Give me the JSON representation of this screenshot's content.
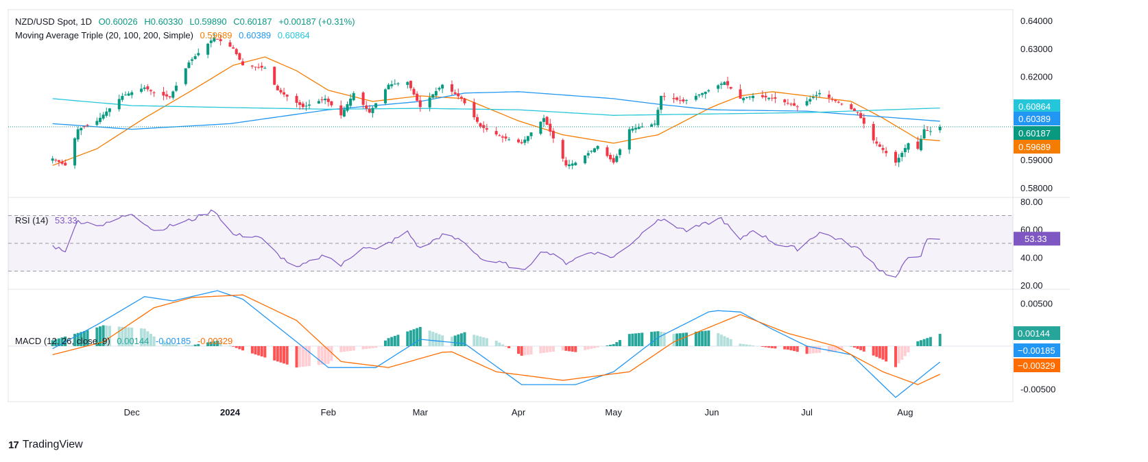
{
  "header": {
    "symbol": "NZD/USD Spot, 1D",
    "ohlc": {
      "o": "O0.60026",
      "h": "H0.60330",
      "l": "L0.59890",
      "c": "C0.60187",
      "chg": "+0.00187 (+0.31%)"
    },
    "ma_label": "Moving Average Triple (20, 100, 200, Simple)",
    "ma_values": [
      "0.59689",
      "0.60389",
      "0.60864"
    ]
  },
  "rsi_legend": {
    "label": "RSI (14)",
    "value": "53.33"
  },
  "macd_legend": {
    "label": "MACD (12, 26, close, 9)",
    "values": [
      "0.00144",
      "-0.00185",
      "-0.00329"
    ]
  },
  "watermark": "TradingView",
  "colors": {
    "up": "#089981",
    "down": "#f23645",
    "ma20": "#f57c00",
    "ma100": "#2196f3",
    "ma200": "#26c6da",
    "rsi": "#7e57c2",
    "macd": "#2196f3",
    "signal": "#ff6d00",
    "hist_up_strong": "#26a69a",
    "hist_up_weak": "#b2dfdb",
    "hist_down_strong": "#ff5252",
    "hist_down_weak": "#ffcdd2"
  },
  "chart_data": [
    {
      "type": "candlestick",
      "title": "NZD/USD Spot, 1D",
      "ylim": [
        0.577,
        0.644
      ],
      "y_ticks": [
        "0.64000",
        "0.63000",
        "0.62000",
        "0.59000",
        "0.58000"
      ],
      "x_labels": [
        "Dec",
        "2024",
        "Feb",
        "Mar",
        "Apr",
        "May",
        "Jun",
        "Jul",
        "Aug"
      ],
      "x_label_dates": [
        "2023-12-01",
        "2024-01-01",
        "2024-02-01",
        "2024-03-01",
        "2024-04-01",
        "2024-05-01",
        "2024-06-01",
        "2024-07-01",
        "2024-08-01"
      ],
      "date_range": [
        "2023-11-06",
        "2024-08-12"
      ],
      "close_anchors": [
        {
          "date": "2023-11-06",
          "close": 0.5905
        },
        {
          "date": "2023-11-10",
          "close": 0.588
        },
        {
          "date": "2023-11-14",
          "close": 0.601
        },
        {
          "date": "2023-11-20",
          "close": 0.604
        },
        {
          "date": "2023-11-28",
          "close": 0.613
        },
        {
          "date": "2023-12-05",
          "close": 0.616
        },
        {
          "date": "2023-12-08",
          "close": 0.614
        },
        {
          "date": "2023-12-13",
          "close": 0.6125
        },
        {
          "date": "2023-12-19",
          "close": 0.625
        },
        {
          "date": "2023-12-27",
          "close": 0.634
        },
        {
          "date": "2024-01-02",
          "close": 0.63
        },
        {
          "date": "2024-01-05",
          "close": 0.624
        },
        {
          "date": "2024-01-12",
          "close": 0.623
        },
        {
          "date": "2024-01-16",
          "close": 0.615
        },
        {
          "date": "2024-01-24",
          "close": 0.609
        },
        {
          "date": "2024-01-31",
          "close": 0.612
        },
        {
          "date": "2024-02-05",
          "close": 0.606
        },
        {
          "date": "2024-02-09",
          "close": 0.614
        },
        {
          "date": "2024-02-14",
          "close": 0.607
        },
        {
          "date": "2024-02-20",
          "close": 0.617
        },
        {
          "date": "2024-02-26",
          "close": 0.618
        },
        {
          "date": "2024-03-01",
          "close": 0.609
        },
        {
          "date": "2024-03-08",
          "close": 0.617
        },
        {
          "date": "2024-03-14",
          "close": 0.612
        },
        {
          "date": "2024-03-20",
          "close": 0.602
        },
        {
          "date": "2024-03-27",
          "close": 0.598
        },
        {
          "date": "2024-04-02",
          "close": 0.596
        },
        {
          "date": "2024-04-09",
          "close": 0.605
        },
        {
          "date": "2024-04-16",
          "close": 0.588
        },
        {
          "date": "2024-04-19",
          "close": 0.589
        },
        {
          "date": "2024-04-26",
          "close": 0.595
        },
        {
          "date": "2024-05-01",
          "close": 0.589
        },
        {
          "date": "2024-05-06",
          "close": 0.601
        },
        {
          "date": "2024-05-14",
          "close": 0.603
        },
        {
          "date": "2024-05-16",
          "close": 0.613
        },
        {
          "date": "2024-05-23",
          "close": 0.611
        },
        {
          "date": "2024-05-31",
          "close": 0.615
        },
        {
          "date": "2024-06-05",
          "close": 0.618
        },
        {
          "date": "2024-06-10",
          "close": 0.612
        },
        {
          "date": "2024-06-14",
          "close": 0.613
        },
        {
          "date": "2024-06-21",
          "close": 0.612
        },
        {
          "date": "2024-06-28",
          "close": 0.609
        },
        {
          "date": "2024-07-05",
          "close": 0.614
        },
        {
          "date": "2024-07-12",
          "close": 0.61
        },
        {
          "date": "2024-07-17",
          "close": 0.607
        },
        {
          "date": "2024-07-22",
          "close": 0.597
        },
        {
          "date": "2024-07-29",
          "close": 0.589
        },
        {
          "date": "2024-08-02",
          "close": 0.596
        },
        {
          "date": "2024-08-05",
          "close": 0.594
        },
        {
          "date": "2024-08-07",
          "close": 0.601
        },
        {
          "date": "2024-08-09",
          "close": 0.6003
        },
        {
          "date": "2024-08-12",
          "close": 0.60187
        }
      ],
      "ma_lines": [
        {
          "name": "MA 20",
          "color": "#f57c00",
          "points": [
            [
              "2023-11-06",
              0.588
            ],
            [
              "2023-11-20",
              0.594
            ],
            [
              "2023-12-05",
              0.605
            ],
            [
              "2023-12-20",
              0.615
            ],
            [
              "2024-01-02",
              0.624
            ],
            [
              "2024-01-12",
              0.627
            ],
            [
              "2024-01-22",
              0.622
            ],
            [
              "2024-02-01",
              0.615
            ],
            [
              "2024-02-15",
              0.611
            ],
            [
              "2024-03-01",
              0.613
            ],
            [
              "2024-03-15",
              0.612
            ],
            [
              "2024-04-01",
              0.604
            ],
            [
              "2024-04-15",
              0.599
            ],
            [
              "2024-05-01",
              0.596
            ],
            [
              "2024-05-15",
              0.599
            ],
            [
              "2024-06-01",
              0.609
            ],
            [
              "2024-06-10",
              0.613
            ],
            [
              "2024-06-20",
              0.6145
            ],
            [
              "2024-07-01",
              0.613
            ],
            [
              "2024-07-15",
              0.611
            ],
            [
              "2024-07-25",
              0.605
            ],
            [
              "2024-08-05",
              0.5975
            ],
            [
              "2024-08-12",
              0.59689
            ]
          ]
        },
        {
          "name": "MA 100",
          "color": "#2196f3",
          "points": [
            [
              "2023-11-06",
              0.603
            ],
            [
              "2023-12-01",
              0.601
            ],
            [
              "2024-01-01",
              0.603
            ],
            [
              "2024-02-01",
              0.608
            ],
            [
              "2024-03-01",
              0.611
            ],
            [
              "2024-03-15",
              0.614
            ],
            [
              "2024-04-01",
              0.6145
            ],
            [
              "2024-05-01",
              0.612
            ],
            [
              "2024-05-15",
              0.61
            ],
            [
              "2024-06-01",
              0.608
            ],
            [
              "2024-07-01",
              0.6075
            ],
            [
              "2024-08-12",
              0.60389
            ]
          ]
        },
        {
          "name": "MA 200",
          "color": "#26c6da",
          "points": [
            [
              "2023-11-06",
              0.612
            ],
            [
              "2023-12-01",
              0.6095
            ],
            [
              "2024-01-01",
              0.6088
            ],
            [
              "2024-02-01",
              0.6082
            ],
            [
              "2024-03-01",
              0.6085
            ],
            [
              "2024-04-01",
              0.608
            ],
            [
              "2024-05-01",
              0.606
            ],
            [
              "2024-06-01",
              0.6065
            ],
            [
              "2024-07-01",
              0.607
            ],
            [
              "2024-08-12",
              0.60864
            ]
          ]
        }
      ],
      "last_price": 0.60187
    },
    {
      "type": "line",
      "title": "RSI (14)",
      "ylim": [
        18,
        82
      ],
      "y_ticks": [
        "80.00",
        "60.00",
        "40.00",
        "20.00"
      ],
      "bands": [
        30,
        50,
        70
      ],
      "series": [
        {
          "name": "RSI (14)",
          "color": "#7e57c2",
          "points": [
            [
              "2023-11-06",
              48
            ],
            [
              "2023-11-10",
              45
            ],
            [
              "2023-11-14",
              66
            ],
            [
              "2023-11-22",
              63
            ],
            [
              "2023-12-01",
              72
            ],
            [
              "2023-12-08",
              59
            ],
            [
              "2023-12-14",
              63
            ],
            [
              "2023-12-20",
              67
            ],
            [
              "2023-12-27",
              74
            ],
            [
              "2024-01-02",
              56
            ],
            [
              "2024-01-10",
              55
            ],
            [
              "2024-01-16",
              42
            ],
            [
              "2024-01-22",
              32
            ],
            [
              "2024-01-31",
              42
            ],
            [
              "2024-02-05",
              34
            ],
            [
              "2024-02-12",
              48
            ],
            [
              "2024-02-16",
              45
            ],
            [
              "2024-02-26",
              58
            ],
            [
              "2024-03-01",
              46
            ],
            [
              "2024-03-08",
              56
            ],
            [
              "2024-03-14",
              52
            ],
            [
              "2024-03-21",
              38
            ],
            [
              "2024-03-28",
              35
            ],
            [
              "2024-04-02",
              30
            ],
            [
              "2024-04-09",
              45
            ],
            [
              "2024-04-16",
              36
            ],
            [
              "2024-04-24",
              44
            ],
            [
              "2024-05-01",
              40
            ],
            [
              "2024-05-08",
              53
            ],
            [
              "2024-05-15",
              68
            ],
            [
              "2024-05-24",
              59
            ],
            [
              "2024-06-04",
              68
            ],
            [
              "2024-06-10",
              52
            ],
            [
              "2024-06-14",
              60
            ],
            [
              "2024-06-21",
              50
            ],
            [
              "2024-06-28",
              46
            ],
            [
              "2024-07-05",
              58
            ],
            [
              "2024-07-12",
              52
            ],
            [
              "2024-07-18",
              45
            ],
            [
              "2024-07-24",
              31
            ],
            [
              "2024-07-29",
              25
            ],
            [
              "2024-08-02",
              40
            ],
            [
              "2024-08-06",
              42
            ],
            [
              "2024-08-08",
              52
            ],
            [
              "2024-08-12",
              53.33
            ]
          ]
        }
      ],
      "last_value": 53.33
    },
    {
      "type": "line",
      "title": "MACD (12, 26, close, 9)",
      "ylim": [
        -0.0065,
        0.0065
      ],
      "y_ticks": [
        "0.00500",
        "0.00000",
        "-0.00500"
      ],
      "series": [
        {
          "name": "MACD",
          "color": "#2196f3",
          "points": [
            [
              "2023-11-06",
              -0.0003
            ],
            [
              "2023-11-20",
              0.0025
            ],
            [
              "2023-12-05",
              0.0058
            ],
            [
              "2023-12-14",
              0.0053
            ],
            [
              "2023-12-28",
              0.0065
            ],
            [
              "2024-01-05",
              0.0055
            ],
            [
              "2024-01-22",
              0.0005
            ],
            [
              "2024-02-01",
              -0.0025
            ],
            [
              "2024-02-16",
              -0.0025
            ],
            [
              "2024-03-01",
              0.0008
            ],
            [
              "2024-03-15",
              0.0003
            ],
            [
              "2024-04-02",
              -0.0045
            ],
            [
              "2024-04-19",
              -0.0045
            ],
            [
              "2024-05-01",
              -0.003
            ],
            [
              "2024-05-15",
              0.001
            ],
            [
              "2024-06-01",
              0.0042
            ],
            [
              "2024-06-10",
              0.004
            ],
            [
              "2024-06-20",
              0.002
            ],
            [
              "2024-07-01",
              0.0
            ],
            [
              "2024-07-15",
              -0.001
            ],
            [
              "2024-07-29",
              -0.006
            ],
            [
              "2024-08-12",
              -0.00185
            ]
          ]
        },
        {
          "name": "Signal",
          "color": "#ff6d00",
          "points": [
            [
              "2023-11-06",
              -0.001
            ],
            [
              "2023-11-22",
              0.0005
            ],
            [
              "2023-12-08",
              0.0045
            ],
            [
              "2023-12-20",
              0.0057
            ],
            [
              "2024-01-05",
              0.006
            ],
            [
              "2024-01-22",
              0.003
            ],
            [
              "2024-02-05",
              -0.0018
            ],
            [
              "2024-02-20",
              -0.0025
            ],
            [
              "2024-03-10",
              -0.0005
            ],
            [
              "2024-03-25",
              -0.003
            ],
            [
              "2024-04-15",
              -0.004
            ],
            [
              "2024-05-06",
              -0.003
            ],
            [
              "2024-05-20",
              0.0005
            ],
            [
              "2024-06-10",
              0.0037
            ],
            [
              "2024-06-25",
              0.0015
            ],
            [
              "2024-07-10",
              0.0
            ],
            [
              "2024-07-25",
              -0.003
            ],
            [
              "2024-08-05",
              -0.0045
            ],
            [
              "2024-08-12",
              -0.00329
            ]
          ]
        }
      ],
      "histogram_note": "MACD minus Signal",
      "last_values": [
        0.00144,
        -0.00185,
        -0.00329
      ]
    }
  ]
}
